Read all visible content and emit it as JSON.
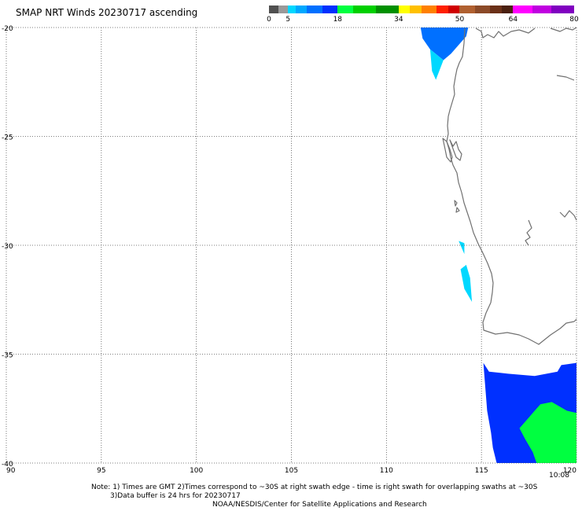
{
  "title": "SMAP NRT Winds 20230717 ascending",
  "colorbar": {
    "tick_labels": [
      "0",
      "5",
      "18",
      "34",
      "50",
      "64",
      "80"
    ],
    "segments": [
      {
        "from": 0,
        "to": 2.5,
        "color": "#505050"
      },
      {
        "from": 2.5,
        "to": 5,
        "color": "#9a9a9a"
      },
      {
        "from": 5,
        "to": 7,
        "color": "#00d8ff"
      },
      {
        "from": 7,
        "to": 10,
        "color": "#00a8ff"
      },
      {
        "from": 10,
        "to": 14,
        "color": "#0070ff"
      },
      {
        "from": 14,
        "to": 18,
        "color": "#0030ff"
      },
      {
        "from": 18,
        "to": 22,
        "color": "#00ff40"
      },
      {
        "from": 22,
        "to": 28,
        "color": "#00d000"
      },
      {
        "from": 28,
        "to": 34,
        "color": "#009000"
      },
      {
        "from": 34,
        "to": 37,
        "color": "#ffff00"
      },
      {
        "from": 37,
        "to": 40,
        "color": "#ffc000"
      },
      {
        "from": 40,
        "to": 44,
        "color": "#ff8000"
      },
      {
        "from": 44,
        "to": 47,
        "color": "#ff2000"
      },
      {
        "from": 47,
        "to": 50,
        "color": "#d00000"
      },
      {
        "from": 50,
        "to": 54,
        "color": "#b06030"
      },
      {
        "from": 54,
        "to": 58,
        "color": "#8b4a28"
      },
      {
        "from": 58,
        "to": 61,
        "color": "#6a3018"
      },
      {
        "from": 61,
        "to": 64,
        "color": "#4a2010"
      },
      {
        "from": 64,
        "to": 69,
        "color": "#ff00ff"
      },
      {
        "from": 69,
        "to": 74,
        "color": "#c000e0"
      },
      {
        "from": 74,
        "to": 80,
        "color": "#8000c0"
      }
    ]
  },
  "map": {
    "lon_range": [
      90,
      120
    ],
    "lat_range": [
      -40,
      -20
    ],
    "lon_ticks": [
      90,
      95,
      100,
      105,
      110,
      115,
      120
    ],
    "lat_ticks": [
      -20,
      -25,
      -30,
      -35,
      -40
    ],
    "lon_tick_labels": [
      "90",
      "95",
      "100",
      "105",
      "110",
      "115",
      "120"
    ],
    "lat_tick_labels": [
      "-20",
      "-25",
      "-30",
      "-35",
      "-40"
    ],
    "grid": "dotted",
    "coastline_color": "#707070",
    "wind_swaths": [
      {
        "color": "#0070ff",
        "points": [
          [
            111.8,
            -20.0
          ],
          [
            114.3,
            -20.0
          ],
          [
            114.2,
            -20.4
          ],
          [
            113.4,
            -21.2
          ],
          [
            113.0,
            -21.5
          ],
          [
            112.3,
            -21.0
          ],
          [
            111.9,
            -20.5
          ]
        ]
      },
      {
        "color": "#00d8ff",
        "points": [
          [
            112.3,
            -21.0
          ],
          [
            113.0,
            -21.5
          ],
          [
            112.6,
            -22.4
          ],
          [
            112.4,
            -22.0
          ]
        ]
      },
      {
        "color": "#00d8ff",
        "points": [
          [
            113.8,
            -29.8
          ],
          [
            114.1,
            -29.9
          ],
          [
            114.1,
            -30.4
          ]
        ]
      },
      {
        "color": "#00d8ff",
        "points": [
          [
            113.9,
            -31.1
          ],
          [
            114.2,
            -30.9
          ],
          [
            114.4,
            -31.5
          ],
          [
            114.5,
            -32.6
          ],
          [
            114.1,
            -32.0
          ]
        ]
      },
      {
        "color": "#0030ff",
        "points": [
          [
            115.1,
            -35.4
          ],
          [
            115.4,
            -35.8
          ],
          [
            116.4,
            -35.9
          ],
          [
            117.8,
            -36.0
          ],
          [
            119.0,
            -35.8
          ],
          [
            119.2,
            -35.5
          ],
          [
            120.0,
            -35.4
          ],
          [
            120.0,
            -40.0
          ],
          [
            115.8,
            -40.0
          ],
          [
            115.6,
            -39.3
          ],
          [
            115.5,
            -38.6
          ],
          [
            115.3,
            -37.6
          ],
          [
            115.2,
            -36.5
          ]
        ]
      },
      {
        "color": "#00ff40",
        "points": [
          [
            118.1,
            -37.3
          ],
          [
            118.7,
            -37.2
          ],
          [
            119.5,
            -37.6
          ],
          [
            120.0,
            -37.7
          ],
          [
            120.0,
            -40.0
          ],
          [
            117.9,
            -40.0
          ],
          [
            117.7,
            -39.5
          ],
          [
            117.3,
            -38.9
          ],
          [
            117.0,
            -38.4
          ],
          [
            117.4,
            -38.0
          ],
          [
            117.8,
            -37.6
          ]
        ]
      }
    ]
  },
  "time_label": "10:08",
  "note": {
    "line1": "Note: 1) Times are GMT 2)Times correspond to ~30S at right swath edge - time is right swath for overlapping swaths at ~30S",
    "line2": "3)Data buffer is 24 hrs for 20230717",
    "line3": "NOAA/NESDIS/Center for Satellite Applications and Research"
  }
}
